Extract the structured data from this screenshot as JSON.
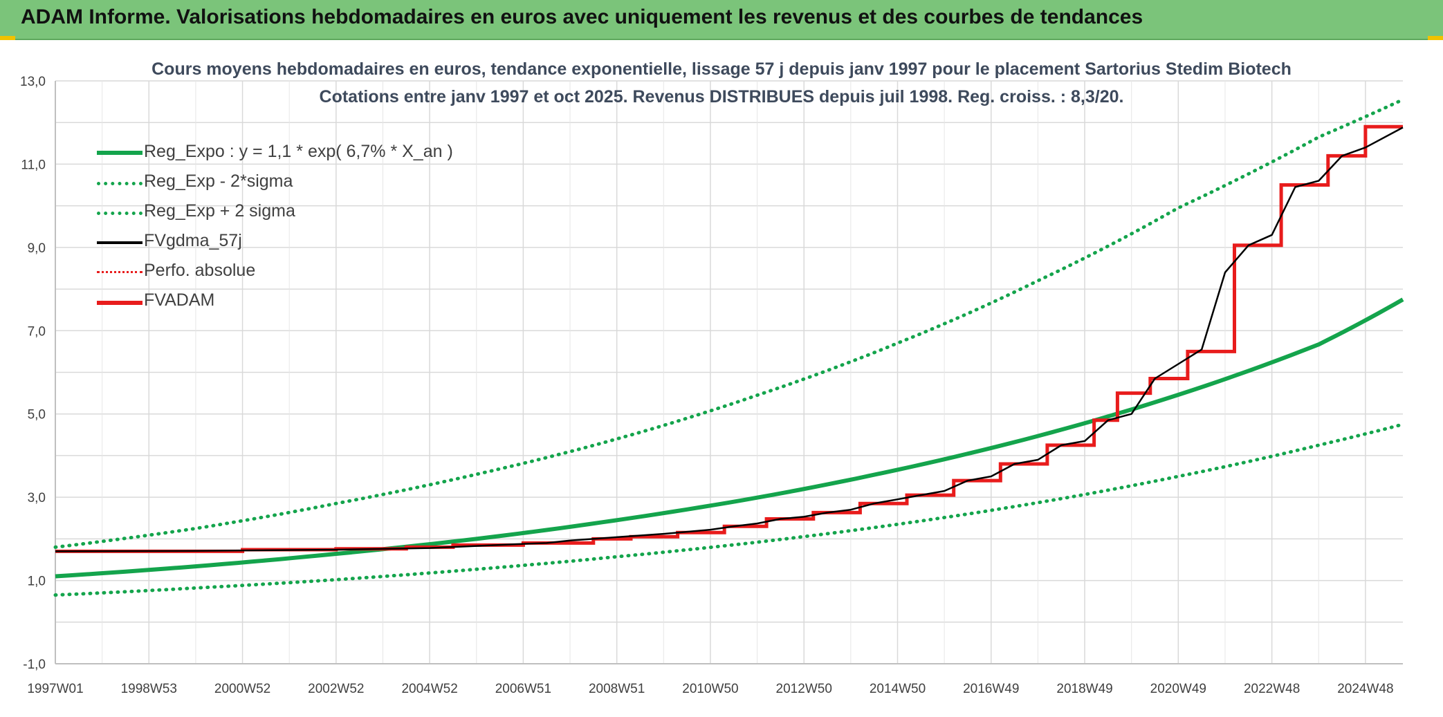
{
  "banner": {
    "title": "ADAM Informe. Valorisations hebdomadaires en euros avec uniquement les revenus et des courbes de tendances"
  },
  "colors": {
    "banner_bg": "#7bc47a",
    "reg_expo": "#14a44c",
    "fvgdma": "#000000",
    "fvadam": "#e81c1c",
    "perfo": "#e81c1c",
    "accent_corner": "#f2c200"
  },
  "chart_data": {
    "type": "line",
    "title_line1": "Cours moyens hebdomadaires en euros, tendance exponentielle, lissage 57 j depuis janv 1997 pour le placement Sartorius Stedim Biotech",
    "title_line2": "Cotations entre janv 1997 et oct 2025. Revenus DISTRIBUES depuis juil 1998. Reg. croiss. : 8,3/20.",
    "ylim": [
      -1.0,
      13.0
    ],
    "y_ticks": [
      "13,0",
      "11,0",
      "9,0",
      "7,0",
      "5,0",
      "3,0",
      "1,0",
      "-1,0"
    ],
    "y_tick_values": [
      13,
      11,
      9,
      7,
      5,
      3,
      1,
      -1
    ],
    "x_tick_labels": [
      "1997W01",
      "1998W53",
      "2000W52",
      "2002W52",
      "2004W52",
      "2006W51",
      "2008W51",
      "2010W50",
      "2012W50",
      "2014W50",
      "2016W49",
      "2018W49",
      "2020W49",
      "2022W48",
      "2024W48"
    ],
    "x_tick_years": [
      1997.0,
      1999.0,
      2001.0,
      2003.0,
      2005.0,
      2007.0,
      2009.0,
      2011.0,
      2013.0,
      2015.0,
      2017.0,
      2019.0,
      2021.0,
      2023.0,
      2025.0
    ],
    "xlim": [
      1997.0,
      2025.8
    ],
    "grid": true,
    "legend_position": "top-left",
    "series": [
      {
        "name": "Reg_Expo : y = 1,1 * exp( 6,7% *  X_an )",
        "style": "solid-thick",
        "color": "#14a44c",
        "x": [
          1997,
          2000,
          2003,
          2006,
          2009,
          2012,
          2015,
          2018,
          2021,
          2024,
          2025.8
        ],
        "y": [
          1.1,
          1.34,
          1.64,
          2.0,
          2.45,
          2.99,
          3.66,
          4.47,
          5.46,
          6.67,
          7.75
        ]
      },
      {
        "name": "Reg_Exp - 2*sigma",
        "style": "dotted",
        "color": "#14a44c",
        "x": [
          1997,
          2000,
          2003,
          2006,
          2009,
          2012,
          2015,
          2018,
          2021,
          2024,
          2025.8
        ],
        "y": [
          0.65,
          0.82,
          1.02,
          1.27,
          1.57,
          1.92,
          2.35,
          2.87,
          3.5,
          4.25,
          4.75
        ]
      },
      {
        "name": "Reg_Exp + 2 sigma",
        "style": "dotted",
        "color": "#14a44c",
        "x": [
          1997,
          2000,
          2003,
          2006,
          2009,
          2012,
          2015,
          2018,
          2021,
          2024,
          2025.8
        ],
        "y": [
          1.8,
          2.25,
          2.85,
          3.55,
          4.4,
          5.45,
          6.7,
          8.2,
          9.95,
          11.65,
          12.55
        ]
      },
      {
        "name": "FVgdma_57j",
        "style": "solid",
        "color": "#000000",
        "x": [
          1997.0,
          2000.0,
          2003.0,
          2005.0,
          2006.0,
          2007.0,
          2007.5,
          2008.0,
          2008.5,
          2009.0,
          2009.5,
          2010.0,
          2010.5,
          2011.0,
          2011.5,
          2012.0,
          2012.5,
          2013.0,
          2013.5,
          2014.0,
          2014.5,
          2015.0,
          2015.5,
          2016.0,
          2016.5,
          2017.0,
          2017.5,
          2018.0,
          2018.5,
          2019.0,
          2019.5,
          2020.0,
          2020.5,
          2021.0,
          2021.5,
          2022.0,
          2022.5,
          2023.0,
          2023.5,
          2024.0,
          2024.5,
          2025.0,
          2025.8
        ],
        "y": [
          1.7,
          1.71,
          1.74,
          1.78,
          1.83,
          1.88,
          1.9,
          1.96,
          2.0,
          2.04,
          2.08,
          2.12,
          2.17,
          2.22,
          2.3,
          2.37,
          2.48,
          2.53,
          2.63,
          2.7,
          2.85,
          2.95,
          3.05,
          3.15,
          3.4,
          3.5,
          3.8,
          3.9,
          4.25,
          4.35,
          4.85,
          5.0,
          5.85,
          6.2,
          6.55,
          8.4,
          9.05,
          9.3,
          10.45,
          10.6,
          11.2,
          11.4,
          11.88
        ]
      },
      {
        "name": "Perfo. absolue",
        "style": "dotted",
        "color": "#e81c1c",
        "x": [],
        "y": []
      },
      {
        "name": "FVADAM",
        "style": "step-thick",
        "color": "#e81c1c",
        "x": [
          1997.0,
          2001.0,
          2003.0,
          2004.5,
          2005.5,
          2007.0,
          2008.5,
          2009.3,
          2010.3,
          2011.3,
          2012.2,
          2013.2,
          2014.2,
          2015.2,
          2016.2,
          2017.2,
          2018.2,
          2019.2,
          2019.7,
          2020.4,
          2021.2,
          2022.2,
          2023.2,
          2024.2,
          2025.0,
          2025.8
        ],
        "y": [
          1.7,
          1.74,
          1.76,
          1.8,
          1.85,
          1.9,
          2.0,
          2.05,
          2.15,
          2.3,
          2.48,
          2.63,
          2.85,
          3.05,
          3.4,
          3.8,
          4.25,
          4.85,
          5.5,
          5.85,
          6.5,
          9.05,
          10.5,
          11.2,
          11.9,
          11.9
        ]
      }
    ]
  }
}
